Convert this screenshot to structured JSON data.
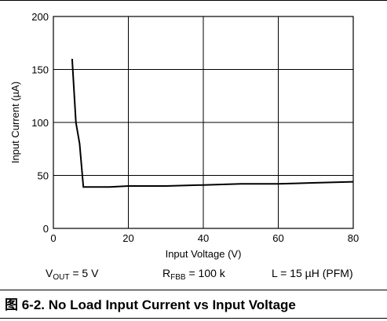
{
  "chart_data": {
    "type": "line",
    "xlabel": "Input Voltage (V)",
    "ylabel": "Input Current (µA)",
    "xlim": [
      0,
      80
    ],
    "ylim": [
      0,
      200
    ],
    "xticks": [
      "0",
      "20",
      "40",
      "60",
      "80"
    ],
    "yticks": [
      "0",
      "50",
      "100",
      "150",
      "200"
    ],
    "grid": true,
    "series": [
      {
        "x": [
          5,
          6,
          7,
          8,
          10,
          15,
          20,
          30,
          40,
          50,
          60,
          70,
          80
        ],
        "y": [
          160,
          100,
          80,
          39,
          39,
          39,
          40,
          40,
          41,
          42,
          42,
          43,
          44
        ]
      }
    ]
  },
  "conditions": {
    "vout_main": "V",
    "vout_sub": "OUT",
    "vout_rest": " = 5 V",
    "rfbb_main": "R",
    "rfbb_sub": "FBB",
    "rfbb_rest": " = 100 k",
    "inductor": "L = 15 µH (PFM)"
  },
  "caption": "图 6-2. No Load Input Current vs Input Voltage"
}
